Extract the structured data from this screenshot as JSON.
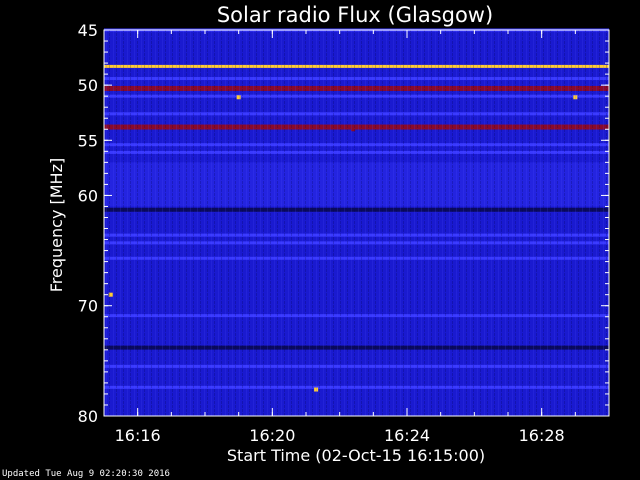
{
  "chart_data": {
    "type": "heatmap",
    "title": "Solar radio Flux (Glasgow)",
    "xlabel": "Start Time (02-Oct-15 16:15:00)",
    "ylabel": "Frequency [MHz]",
    "x_unit": "minutes after 16:15:00",
    "xlim": [
      0,
      15
    ],
    "ylim": [
      45,
      80
    ],
    "x_ticks": [
      {
        "value": 1,
        "label": "16:16"
      },
      {
        "value": 5,
        "label": "16:20"
      },
      {
        "value": 9,
        "label": "16:24"
      },
      {
        "value": 13,
        "label": "16:28"
      }
    ],
    "y_ticks": [
      {
        "value": 45,
        "label": "45"
      },
      {
        "value": 50,
        "label": "50"
      },
      {
        "value": 55,
        "label": "55"
      },
      {
        "value": 60,
        "label": "60"
      },
      {
        "value": 70,
        "label": "70"
      },
      {
        "value": 80,
        "label": "80"
      }
    ],
    "colors": {
      "background": "#000000",
      "low": "#0a0a5c",
      "base": "#1a1ad0",
      "mid": "#3a3aff",
      "high": "#8a0a2a",
      "peak": "#ffcc33"
    },
    "frequency_bands": [
      {
        "freq": 45.0,
        "level": "mid"
      },
      {
        "freq": 48.3,
        "level": "peak"
      },
      {
        "freq": 49.4,
        "level": "mid"
      },
      {
        "freq": 50.3,
        "level": "high"
      },
      {
        "freq": 51.0,
        "level": "mid"
      },
      {
        "freq": 52.6,
        "level": "mid"
      },
      {
        "freq": 53.8,
        "level": "high"
      },
      {
        "freq": 55.4,
        "level": "mid"
      },
      {
        "freq": 56.1,
        "level": "mid"
      },
      {
        "freq": 61.3,
        "level": "low"
      },
      {
        "freq": 63.6,
        "level": "mid"
      },
      {
        "freq": 64.3,
        "level": "mid"
      },
      {
        "freq": 65.7,
        "level": "mid"
      },
      {
        "freq": 70.9,
        "level": "mid"
      },
      {
        "freq": 73.8,
        "level": "low"
      },
      {
        "freq": 75.5,
        "level": "mid"
      },
      {
        "freq": 77.4,
        "level": "mid"
      }
    ],
    "bursts": [
      {
        "time": 4.0,
        "freq": 51.1,
        "level": "peak"
      },
      {
        "time": 14.0,
        "freq": 51.1,
        "level": "peak"
      },
      {
        "time": 7.4,
        "freq": 54.0,
        "level": "high"
      },
      {
        "time": 0.2,
        "freq": 69.0,
        "level": "peak"
      },
      {
        "time": 6.3,
        "freq": 77.6,
        "level": "peak"
      }
    ]
  },
  "footer": {
    "updated": "Updated Tue Aug  9 02:20:30 2016"
  }
}
